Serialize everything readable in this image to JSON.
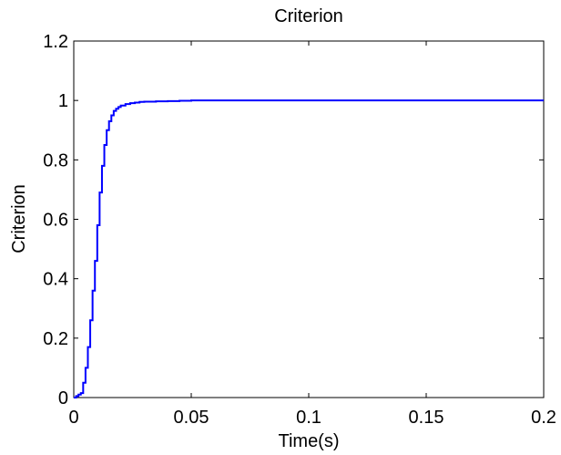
{
  "chart_data": {
    "type": "line",
    "title": "Criterion",
    "xlabel": "Time(s)",
    "ylabel": "Criterion",
    "xlim": [
      0,
      0.2
    ],
    "ylim": [
      0,
      1.2
    ],
    "xticks": [
      0,
      0.05,
      0.1,
      0.15,
      0.2
    ],
    "xtick_labels": [
      "0",
      "0.05",
      "0.1",
      "0.15",
      "0.2"
    ],
    "yticks": [
      0,
      0.2,
      0.4,
      0.6,
      0.8,
      1,
      1.2
    ],
    "ytick_labels": [
      "0",
      "0.2",
      "0.4",
      "0.6",
      "0.8",
      "1",
      "1.2"
    ],
    "grid": false,
    "series": [
      {
        "color": "#0000ff",
        "x": [
          0,
          0.001,
          0.002,
          0.003,
          0.004,
          0.005,
          0.006,
          0.007,
          0.008,
          0.009,
          0.01,
          0.011,
          0.012,
          0.013,
          0.014,
          0.015,
          0.016,
          0.017,
          0.018,
          0.019,
          0.02,
          0.022,
          0.024,
          0.026,
          0.028,
          0.03,
          0.035,
          0.04,
          0.045,
          0.05,
          0.1,
          0.15,
          0.2
        ],
        "y": [
          0,
          0.005,
          0.01,
          0.015,
          0.05,
          0.1,
          0.17,
          0.26,
          0.36,
          0.46,
          0.58,
          0.69,
          0.78,
          0.85,
          0.9,
          0.93,
          0.95,
          0.965,
          0.972,
          0.978,
          0.983,
          0.988,
          0.991,
          0.993,
          0.995,
          0.996,
          0.997,
          0.998,
          0.999,
          1.0,
          1.0,
          1.0,
          1.0
        ]
      }
    ]
  }
}
